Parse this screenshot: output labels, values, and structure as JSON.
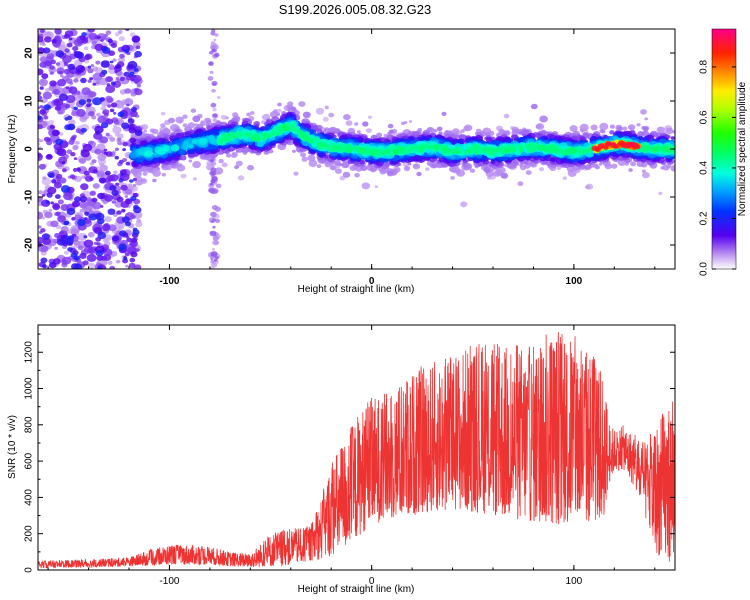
{
  "title": "S199.2026.005.08.32.G23",
  "chart_data": [
    {
      "type": "heatmap",
      "xlabel": "Height of straight line (km)",
      "ylabel": "Frequency (Hz)",
      "xlim": [
        -165,
        150
      ],
      "ylim": [
        -25,
        25
      ],
      "x_ticks": [
        -100,
        0,
        100
      ],
      "y_ticks": [
        -20,
        -10,
        0,
        10,
        20
      ],
      "colorbar": {
        "label": "Normalized spectral amplitude",
        "range": [
          0,
          0.95
        ],
        "ticks": [
          0,
          0.2,
          0.4,
          0.6,
          0.8
        ]
      },
      "ridge": {
        "x": [
          -115,
          -105,
          -95,
          -85,
          -75,
          -70,
          -65,
          -60,
          -55,
          -50,
          -45,
          -40,
          -35,
          -30,
          -25,
          -20,
          -10,
          0,
          10,
          20,
          30,
          40,
          50,
          60,
          70,
          80,
          90,
          100,
          110,
          115,
          120,
          125,
          130,
          140,
          150
        ],
        "freq": [
          -1,
          -0.5,
          0.5,
          1.5,
          2,
          2.5,
          3,
          3,
          2,
          3,
          4,
          5,
          3,
          2,
          1,
          0.5,
          0,
          -0.5,
          -0.5,
          0,
          0.5,
          -0.5,
          0,
          -0.5,
          0,
          0.5,
          0,
          -0.5,
          0,
          0.5,
          1,
          1,
          0.5,
          0,
          0
        ]
      }
    },
    {
      "type": "line",
      "xlabel": "Height of straight line (km)",
      "ylabel": "SNR (10 * v/v)",
      "xlim": [
        -165,
        150
      ],
      "ylim": [
        0,
        1350
      ],
      "x_ticks": [
        -100,
        0,
        100
      ],
      "y_ticks": [
        0,
        200,
        400,
        600,
        800,
        1000,
        1200
      ],
      "line_color": "#ee3333",
      "envelope": {
        "x": [
          -165,
          -140,
          -120,
          -110,
          -100,
          -90,
          -80,
          -70,
          -60,
          -50,
          -45,
          -40,
          -35,
          -30,
          -25,
          -20,
          -15,
          -10,
          -5,
          0,
          10,
          20,
          30,
          40,
          50,
          60,
          70,
          80,
          90,
          100,
          110,
          115,
          118,
          120,
          125,
          130,
          135,
          140,
          145,
          150
        ],
        "high": [
          50,
          60,
          70,
          110,
          140,
          140,
          130,
          100,
          90,
          200,
          220,
          230,
          230,
          250,
          400,
          600,
          700,
          800,
          900,
          950,
          1000,
          1100,
          1150,
          1200,
          1250,
          1250,
          1250,
          1250,
          1350,
          1300,
          1200,
          1050,
          800,
          780,
          800,
          750,
          700,
          800,
          900,
          1000
        ],
        "low": [
          10,
          15,
          20,
          25,
          30,
          30,
          30,
          20,
          15,
          20,
          20,
          30,
          40,
          50,
          60,
          80,
          100,
          150,
          200,
          250,
          280,
          300,
          320,
          330,
          320,
          300,
          280,
          260,
          250,
          250,
          260,
          300,
          500,
          550,
          550,
          450,
          300,
          100,
          50,
          40
        ]
      }
    }
  ]
}
